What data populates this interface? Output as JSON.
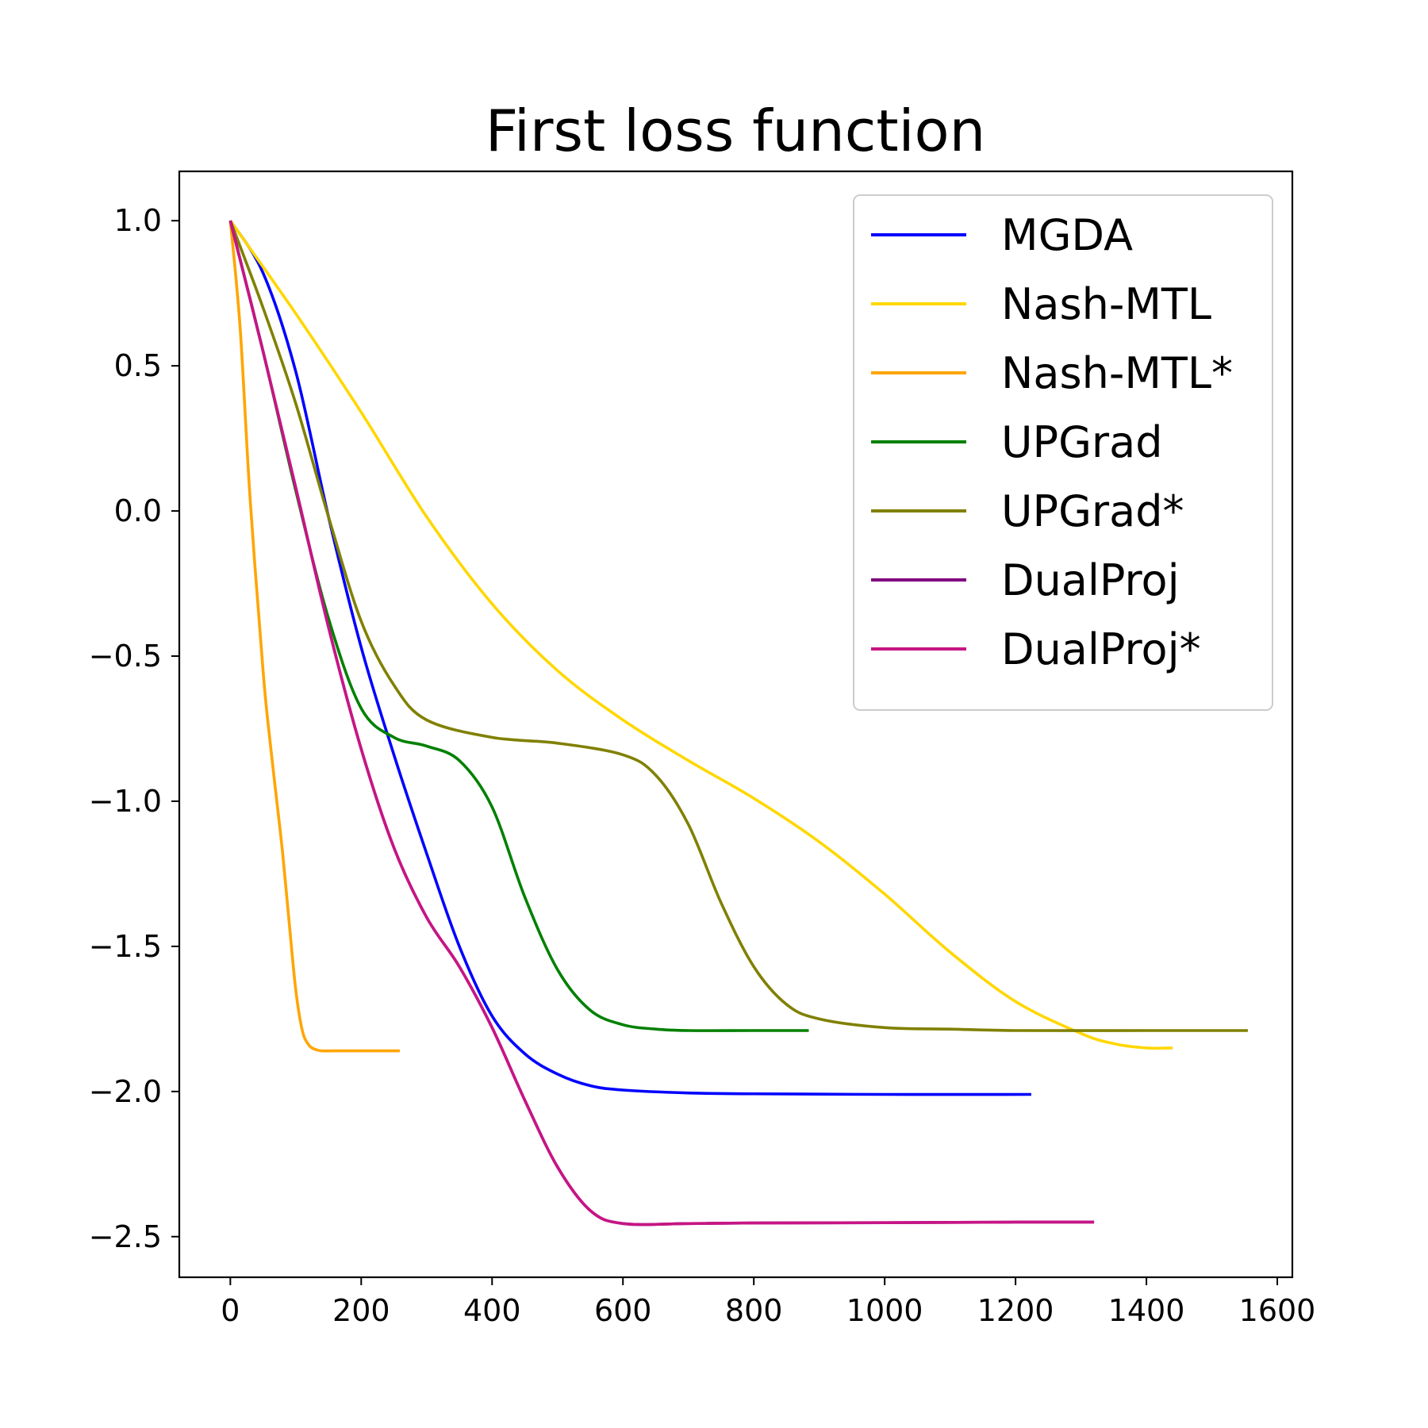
{
  "chart_data": {
    "type": "line",
    "title": "First loss function",
    "xlabel": "",
    "ylabel": "",
    "xlim": [
      -78,
      1623
    ],
    "ylim": [
      -2.64,
      1.17
    ],
    "xticks": [
      0,
      200,
      400,
      600,
      800,
      1000,
      1200,
      1400,
      1600
    ],
    "xtick_labels": [
      "0",
      "200",
      "400",
      "600",
      "800",
      "1000",
      "1200",
      "1400",
      "1600"
    ],
    "yticks": [
      1.0,
      0.5,
      0.0,
      -0.5,
      -1.0,
      -1.5,
      -2.0,
      -2.5
    ],
    "ytick_labels": [
      "1.0",
      "0.5",
      "0.0",
      "−0.5",
      "−1.0",
      "−1.5",
      "−2.0",
      "−2.5"
    ],
    "grid": false,
    "legend_position": "top-right",
    "series": [
      {
        "name": "MGDA",
        "color": "#0000ff",
        "x": [
          0,
          50,
          100,
          150,
          200,
          250,
          300,
          350,
          400,
          450,
          500,
          550,
          600,
          700,
          800,
          1000,
          1224
        ],
        "y": [
          1.0,
          0.82,
          0.48,
          -0.02,
          -0.47,
          -0.84,
          -1.18,
          -1.5,
          -1.74,
          -1.87,
          -1.94,
          -1.98,
          -1.995,
          -2.005,
          -2.008,
          -2.01,
          -2.01
        ]
      },
      {
        "name": "Nash-MTL",
        "color": "#ffd700",
        "x": [
          0,
          100,
          200,
          300,
          400,
          500,
          600,
          700,
          800,
          900,
          1000,
          1100,
          1200,
          1300,
          1350,
          1400,
          1440
        ],
        "y": [
          1.0,
          0.68,
          0.34,
          -0.02,
          -0.32,
          -0.55,
          -0.72,
          -0.86,
          -0.99,
          -1.14,
          -1.32,
          -1.52,
          -1.69,
          -1.8,
          -1.835,
          -1.85,
          -1.85
        ]
      },
      {
        "name": "Nash-MTL*",
        "color": "#ffa500",
        "x": [
          0,
          15,
          30,
          50,
          60,
          70,
          80,
          90,
          100,
          110,
          120,
          130,
          140,
          160,
          200,
          259
        ],
        "y": [
          1.0,
          0.63,
          0.05,
          -0.55,
          -0.78,
          -0.98,
          -1.18,
          -1.42,
          -1.65,
          -1.79,
          -1.84,
          -1.855,
          -1.86,
          -1.86,
          -1.86,
          -1.86
        ]
      },
      {
        "name": "UPGrad",
        "color": "#008000",
        "x": [
          0,
          50,
          100,
          150,
          200,
          250,
          300,
          350,
          400,
          450,
          500,
          550,
          600,
          650,
          700,
          800,
          884
        ],
        "y": [
          1.0,
          0.55,
          0.07,
          -0.37,
          -0.68,
          -0.78,
          -0.81,
          -0.86,
          -1.02,
          -1.33,
          -1.58,
          -1.72,
          -1.77,
          -1.785,
          -1.79,
          -1.79,
          -1.79
        ]
      },
      {
        "name": "UPGrad*",
        "color": "#808000",
        "x": [
          0,
          50,
          100,
          150,
          200,
          250,
          300,
          400,
          500,
          600,
          650,
          700,
          750,
          800,
          850,
          900,
          1000,
          1100,
          1200,
          1400,
          1555
        ],
        "y": [
          1.0,
          0.7,
          0.37,
          -0.02,
          -0.38,
          -0.6,
          -0.72,
          -0.78,
          -0.8,
          -0.84,
          -0.91,
          -1.08,
          -1.35,
          -1.57,
          -1.7,
          -1.75,
          -1.78,
          -1.785,
          -1.79,
          -1.79,
          -1.79
        ]
      },
      {
        "name": "DualProj",
        "color": "#800080",
        "x": [
          0,
          50,
          100,
          150,
          200,
          250,
          300,
          350,
          400,
          450,
          500,
          550,
          600,
          700,
          800,
          1000,
          1200,
          1320
        ],
        "y": [
          1.0,
          0.55,
          0.08,
          -0.4,
          -0.82,
          -1.16,
          -1.4,
          -1.57,
          -1.78,
          -2.03,
          -2.26,
          -2.41,
          -2.455,
          -2.455,
          -2.453,
          -2.452,
          -2.45,
          -2.45
        ]
      },
      {
        "name": "DualProj*",
        "color": "#c71585",
        "x": [
          0,
          50,
          100,
          150,
          200,
          250,
          300,
          350,
          400,
          450,
          500,
          550,
          600,
          700,
          800,
          1000,
          1200,
          1320
        ],
        "y": [
          1.0,
          0.55,
          0.08,
          -0.4,
          -0.82,
          -1.16,
          -1.4,
          -1.57,
          -1.78,
          -2.03,
          -2.26,
          -2.41,
          -2.455,
          -2.455,
          -2.453,
          -2.452,
          -2.45,
          -2.45
        ]
      }
    ]
  }
}
